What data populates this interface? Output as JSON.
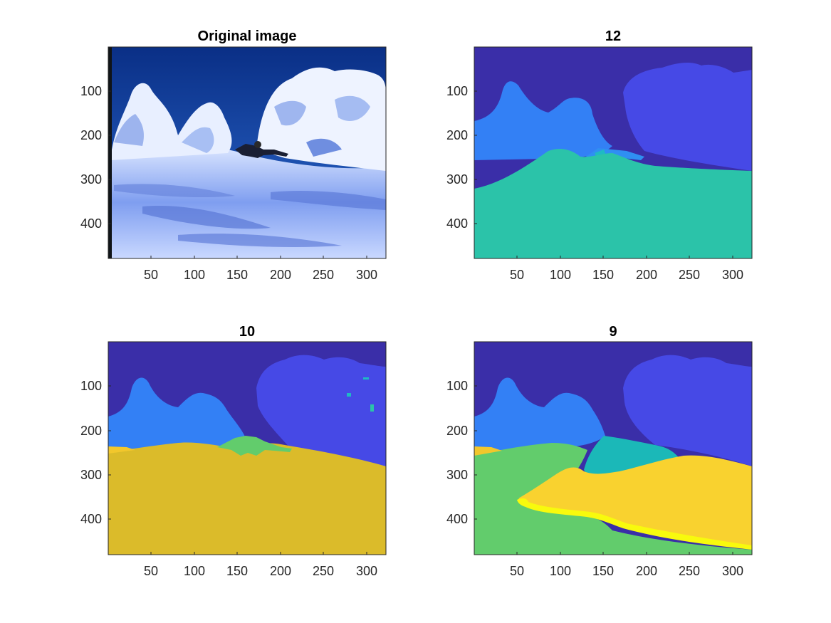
{
  "figure": {
    "panels": [
      {
        "title": "Original image",
        "kind": "photo",
        "x_ticks": [
          "50",
          "100",
          "150",
          "200",
          "250",
          "300"
        ],
        "y_ticks": [
          "100",
          "200",
          "300",
          "400"
        ]
      },
      {
        "title": "12",
        "kind": "segmentation",
        "x_ticks": [
          "50",
          "100",
          "150",
          "200",
          "250",
          "300"
        ],
        "y_ticks": [
          "100",
          "200",
          "300",
          "400"
        ]
      },
      {
        "title": "10",
        "kind": "segmentation",
        "x_ticks": [
          "50",
          "100",
          "150",
          "200",
          "250",
          "300"
        ],
        "y_ticks": [
          "100",
          "200",
          "300",
          "400"
        ]
      },
      {
        "title": "9",
        "kind": "segmentation",
        "x_ticks": [
          "50",
          "100",
          "150",
          "200",
          "250",
          "300"
        ],
        "y_ticks": [
          "100",
          "200",
          "300",
          "400"
        ]
      }
    ],
    "colors": {
      "dark_blue": "#3a2ea8",
      "blue": "#4649e6",
      "light_blue": "#3380f5",
      "teal": "#2bc3a9",
      "cyan": "#1bb8b8",
      "green": "#62cc6c",
      "gold": "#dbbb2a",
      "yellow": "#f9d22f",
      "bright_yellow": "#f8fa0d"
    }
  }
}
